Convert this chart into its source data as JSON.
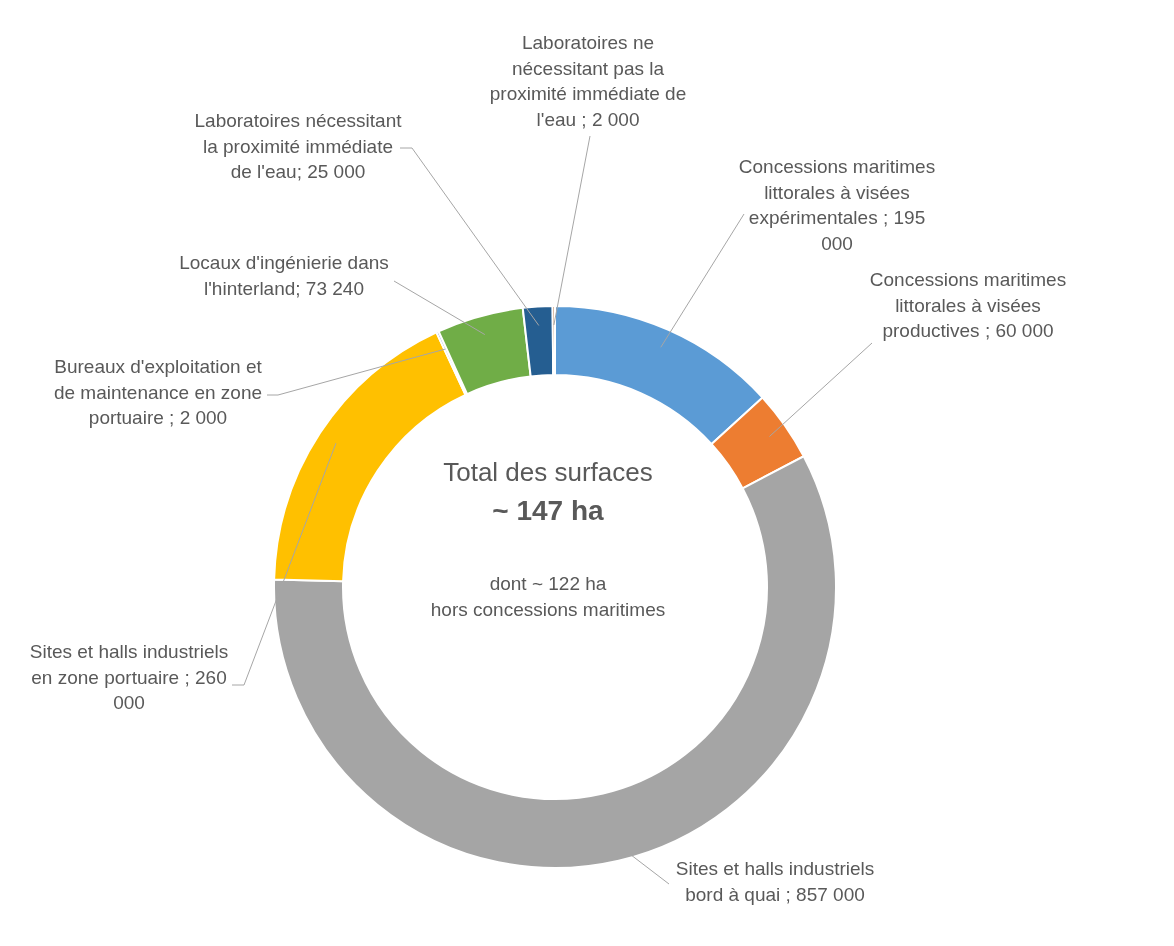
{
  "chart_data": {
    "type": "donut",
    "categories": [
      "Concessions maritimes littorales à visées expérimentales",
      "Concessions maritimes littorales à visées productives",
      "Sites et halls industriels bord à quai",
      "Sites et halls industriels en zone portuaire",
      "Bureaux d'exploitation et de maintenance en zone portuaire",
      "Locaux d'ingénierie dans l'hinterland",
      "Laboratoires nécessitant la proximité immédiate de l'eau",
      "Laboratoires ne nécessitant pas la proximité immédiate de l'eau"
    ],
    "values": [
      195000,
      60000,
      857000,
      260000,
      2000,
      73240,
      25000,
      2000
    ],
    "colors": [
      "#5b9bd5",
      "#ed7d31",
      "#a5a5a5",
      "#ffc000",
      "#4472c4",
      "#70ad47",
      "#255e91",
      "#9e480e"
    ],
    "value_labels": [
      " ; 195 000",
      " ; 60 000",
      " ; 857 000",
      " ; 260 000",
      " ; 2 000",
      "; 73 240",
      "; 25 000",
      " ; 2 000"
    ],
    "annotations": [
      "Total des surfaces",
      "~ 147 ha",
      "dont ~ 122 ha",
      "hors concessions maritimes"
    ]
  }
}
